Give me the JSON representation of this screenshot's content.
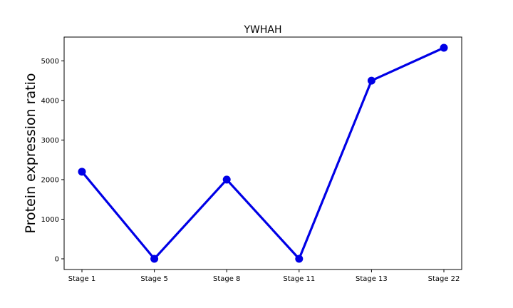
{
  "chart_data": {
    "type": "line",
    "title": "YWHAH",
    "xlabel": "",
    "ylabel": "Protein expression ratio",
    "categories": [
      "Stage 1",
      "Stage 5",
      "Stage 8",
      "Stage 11",
      "Stage 13",
      "Stage 22"
    ],
    "series": [
      {
        "values": [
          2200,
          0,
          2000,
          0,
          4500,
          5330
        ]
      }
    ],
    "ylim": [
      -270,
      5600
    ],
    "yticks": [
      0,
      1000,
      2000,
      3000,
      4000,
      5000
    ],
    "grid": false,
    "color": "#0000e6"
  }
}
